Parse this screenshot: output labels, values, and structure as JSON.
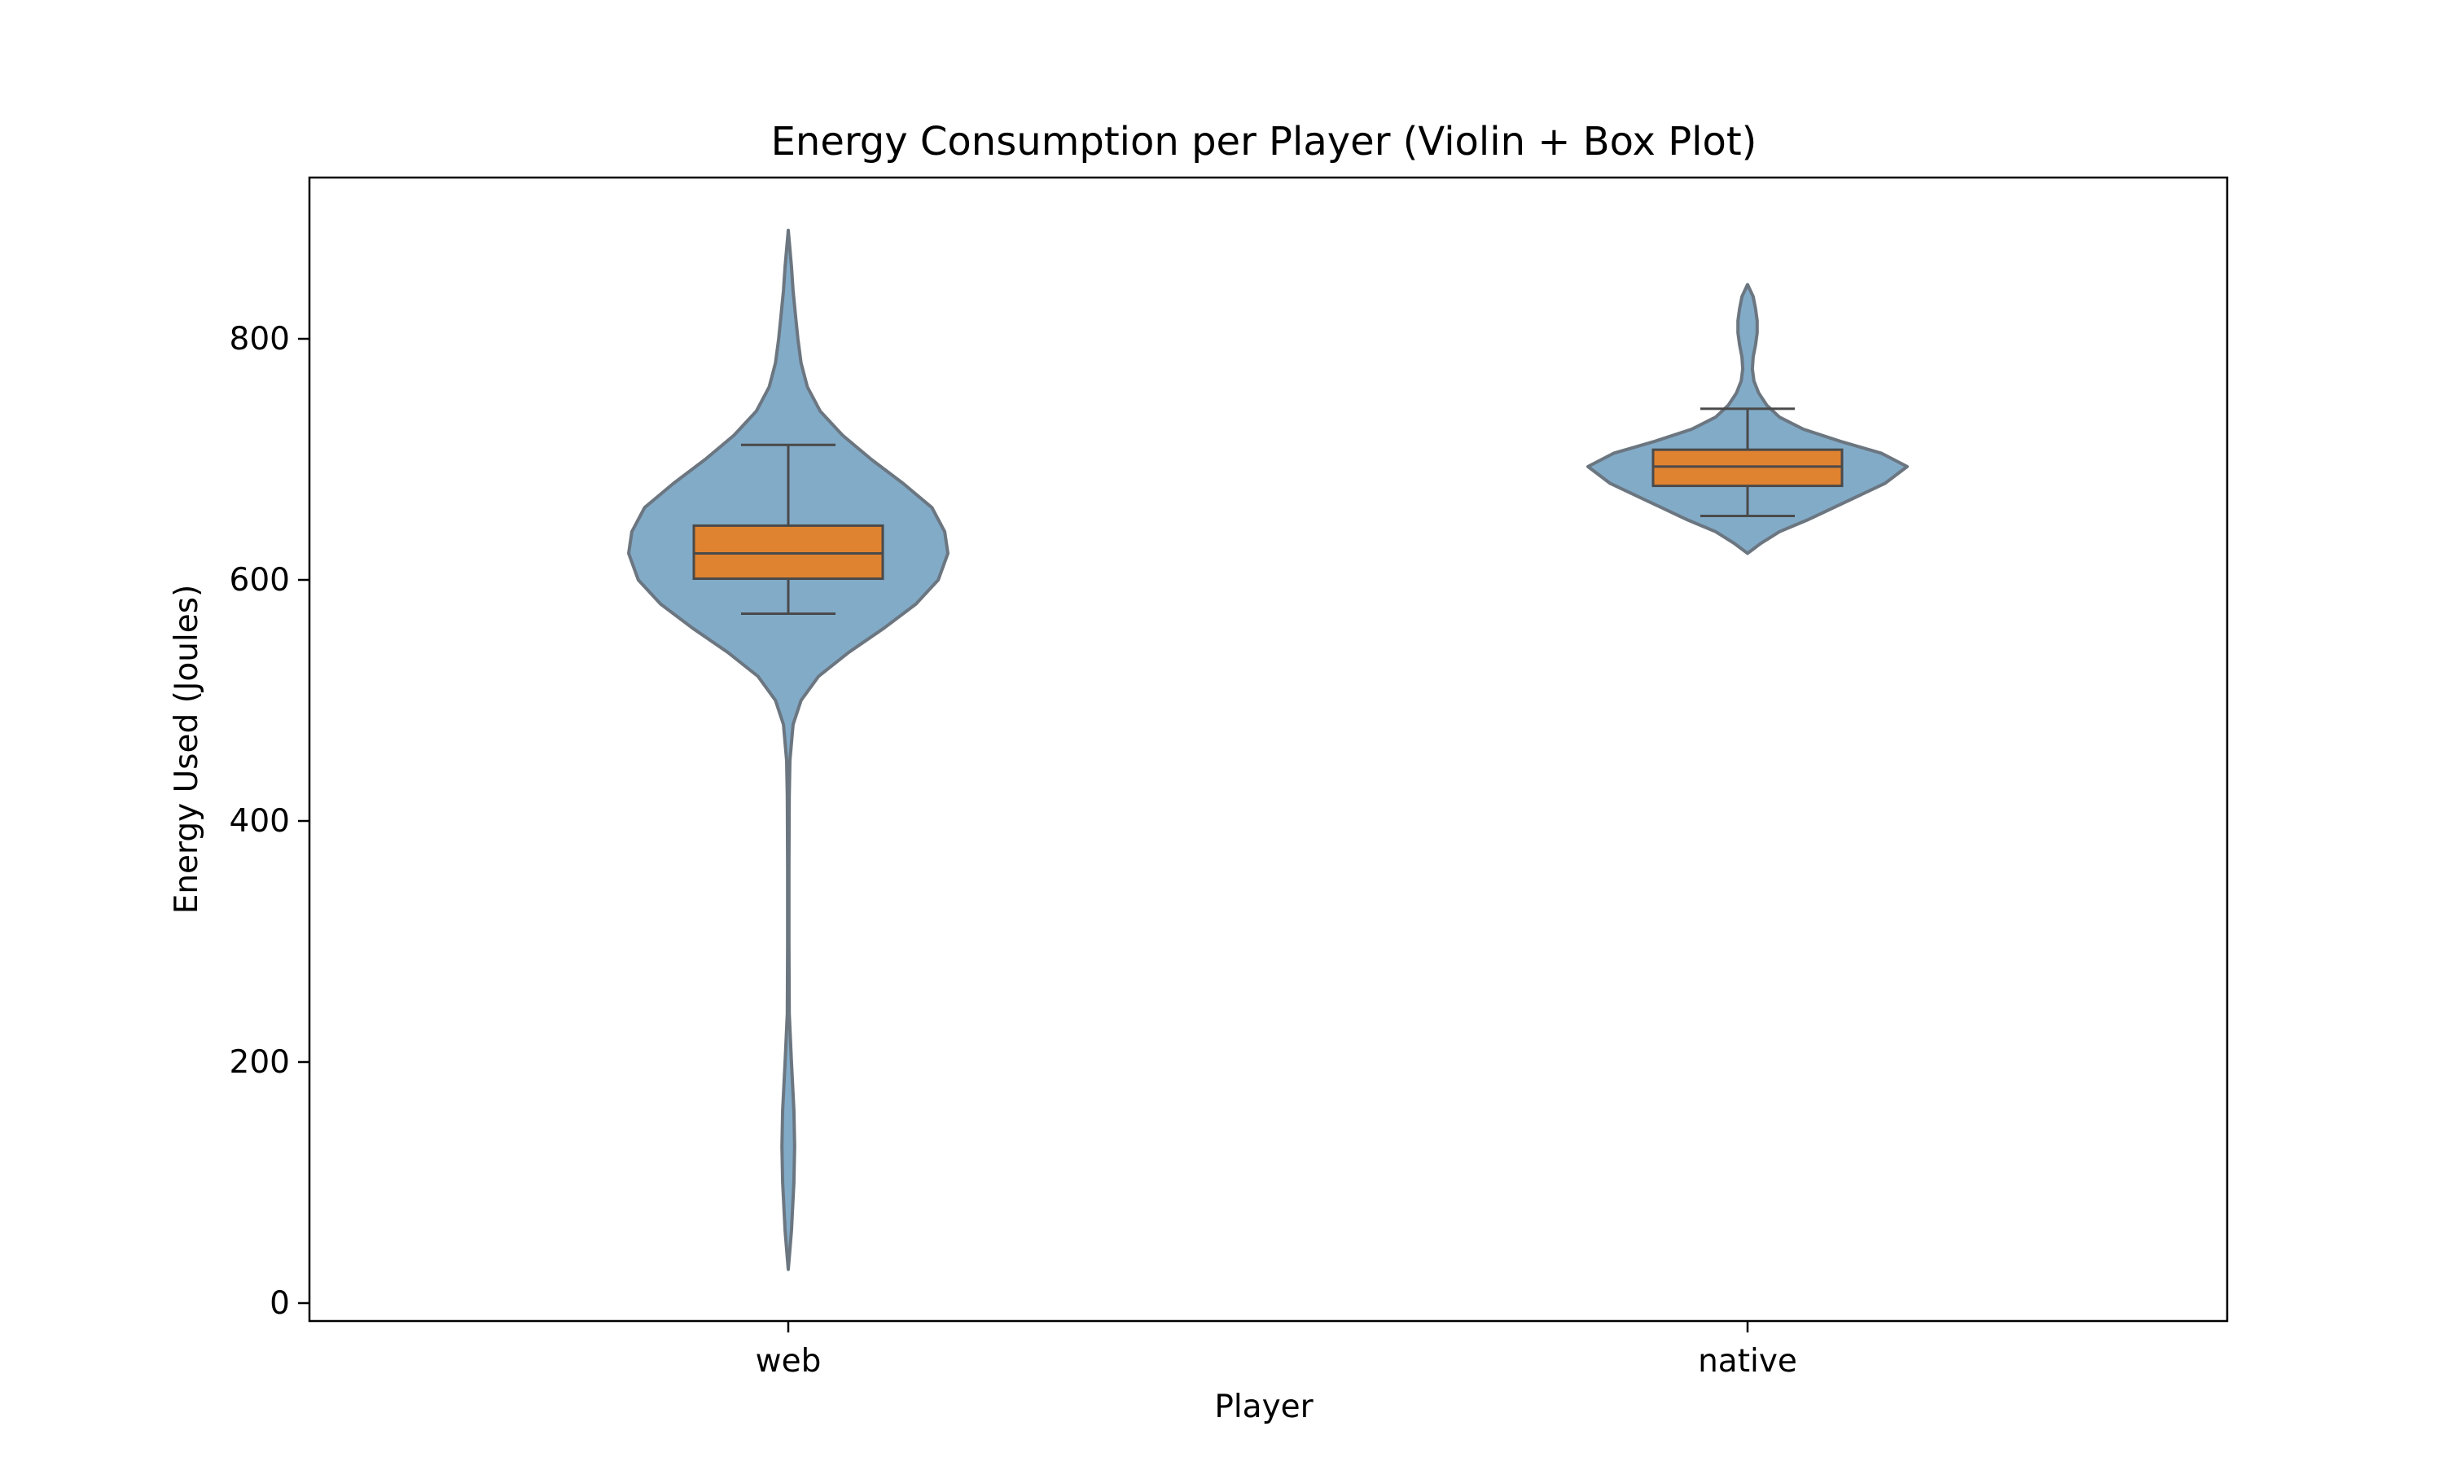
{
  "chart_data": {
    "type": "violin",
    "title": "Energy Consumption per Player (Violin + Box Plot)",
    "xlabel": "Player",
    "ylabel": "Energy Used (Joules)",
    "categories": [
      "web",
      "native"
    ],
    "ylim": [
      -15,
      900
    ],
    "yticks": [
      0,
      200,
      400,
      600,
      800
    ],
    "grid": false,
    "legend": "none",
    "colors": {
      "violin_fill": "#82abc8",
      "violin_edge": "#6b7680",
      "box_fill": "#e08330",
      "box_edge": "#4a4a4a",
      "frame": "#000000"
    },
    "series": [
      {
        "category": "web",
        "box": {
          "whisker_low": 572,
          "q1": 601,
          "median": 622,
          "q3": 645,
          "whisker_high": 712
        },
        "violin": {
          "min": 28,
          "max": 890,
          "profile": [
            [
              28,
              0.0
            ],
            [
              60,
              0.02
            ],
            [
              100,
              0.035
            ],
            [
              130,
              0.04
            ],
            [
              160,
              0.035
            ],
            [
              200,
              0.02
            ],
            [
              240,
              0.006
            ],
            [
              300,
              0.004
            ],
            [
              360,
              0.004
            ],
            [
              420,
              0.006
            ],
            [
              450,
              0.01
            ],
            [
              480,
              0.03
            ],
            [
              500,
              0.08
            ],
            [
              520,
              0.19
            ],
            [
              540,
              0.38
            ],
            [
              560,
              0.6
            ],
            [
              580,
              0.8
            ],
            [
              600,
              0.94
            ],
            [
              622,
              1.0
            ],
            [
              640,
              0.98
            ],
            [
              660,
              0.9
            ],
            [
              680,
              0.72
            ],
            [
              700,
              0.52
            ],
            [
              720,
              0.34
            ],
            [
              740,
              0.2
            ],
            [
              760,
              0.12
            ],
            [
              780,
              0.08
            ],
            [
              800,
              0.06
            ],
            [
              820,
              0.045
            ],
            [
              840,
              0.03
            ],
            [
              860,
              0.02
            ],
            [
              890,
              0.0
            ]
          ]
        }
      },
      {
        "category": "native",
        "box": {
          "whisker_low": 653,
          "q1": 678,
          "median": 694,
          "q3": 708,
          "whisker_high": 742
        },
        "violin": {
          "min": 622,
          "max": 845,
          "profile": [
            [
              622,
              0.0
            ],
            [
              625,
              0.03
            ],
            [
              630,
              0.08
            ],
            [
              640,
              0.2
            ],
            [
              650,
              0.38
            ],
            [
              665,
              0.62
            ],
            [
              680,
              0.86
            ],
            [
              694,
              1.0
            ],
            [
              705,
              0.84
            ],
            [
              715,
              0.58
            ],
            [
              725,
              0.35
            ],
            [
              735,
              0.2
            ],
            [
              745,
              0.12
            ],
            [
              755,
              0.07
            ],
            [
              765,
              0.04
            ],
            [
              775,
              0.03
            ],
            [
              785,
              0.035
            ],
            [
              795,
              0.05
            ],
            [
              805,
              0.06
            ],
            [
              815,
              0.06
            ],
            [
              825,
              0.05
            ],
            [
              835,
              0.035
            ],
            [
              845,
              0.0
            ]
          ]
        }
      }
    ]
  }
}
